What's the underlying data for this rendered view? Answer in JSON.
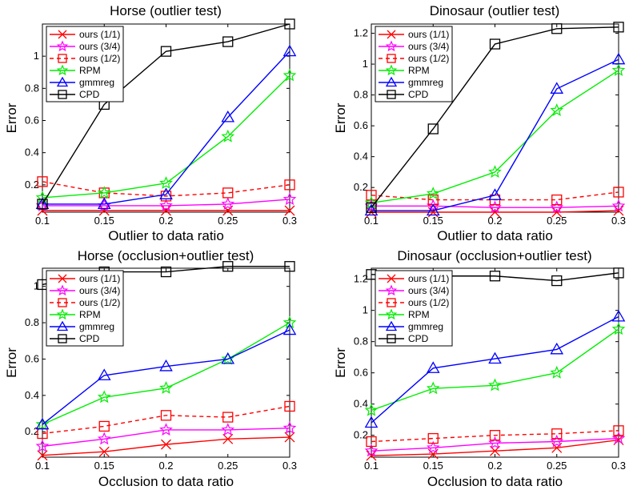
{
  "colors": {
    "ours_1_1": "#ff0000",
    "ours_3_4": "#ff00ff",
    "ours_1_2": "#ff0000",
    "rpm": "#00ee00",
    "gmmreg": "#0000ff",
    "cpd": "#000000"
  },
  "chart_data": [
    {
      "type": "line",
      "title": "Horse (outlier test)",
      "xlabel": "Outlier to data ratio",
      "ylabel": "Error",
      "x": [
        0.1,
        0.15,
        0.2,
        0.25,
        0.3
      ],
      "xticks": [
        "0.1",
        "0.15",
        "0.2",
        "0.25",
        "0.3"
      ],
      "yticks": [
        "0.2",
        "0.4",
        "0.6",
        "0.8",
        "1"
      ],
      "ytick_values": [
        0.2,
        0.4,
        0.6,
        0.8,
        1.0
      ],
      "xlim": [
        0.1,
        0.3
      ],
      "ylim": [
        0.03,
        1.2
      ],
      "legend": "top-left",
      "series": [
        {
          "name": "ours (1/1)",
          "values": [
            0.04,
            0.04,
            0.04,
            0.04,
            0.04
          ]
        },
        {
          "name": "ours (3/4)",
          "values": [
            0.07,
            0.07,
            0.07,
            0.08,
            0.11
          ]
        },
        {
          "name": "ours (1/2)",
          "values": [
            0.22,
            0.15,
            0.13,
            0.15,
            0.2
          ]
        },
        {
          "name": "RPM",
          "values": [
            0.12,
            0.15,
            0.21,
            0.5,
            0.88
          ]
        },
        {
          "name": "gmmreg",
          "values": [
            0.08,
            0.08,
            0.14,
            0.62,
            1.03
          ]
        },
        {
          "name": "CPD",
          "values": [
            0.08,
            0.7,
            1.03,
            1.09,
            1.2
          ]
        }
      ]
    },
    {
      "type": "line",
      "title": "Dinosaur (outlier test)",
      "xlabel": "Outlier to data ratio",
      "ylabel": "Error",
      "x": [
        0.1,
        0.15,
        0.2,
        0.25,
        0.3
      ],
      "xticks": [
        "0.1",
        "0.15",
        "0.2",
        "0.25",
        "0.3"
      ],
      "yticks": [
        "0.2",
        "0.4",
        "0.6",
        "0.8",
        "1",
        "1.2"
      ],
      "ytick_values": [
        0.2,
        0.4,
        0.6,
        0.8,
        1.0,
        1.2
      ],
      "xlim": [
        0.1,
        0.3
      ],
      "ylim": [
        0.04,
        1.26
      ],
      "legend": "top-left",
      "series": [
        {
          "name": "ours (1/1)",
          "values": [
            0.04,
            0.04,
            0.04,
            0.04,
            0.05
          ]
        },
        {
          "name": "ours (3/4)",
          "values": [
            0.08,
            0.08,
            0.07,
            0.07,
            0.08
          ]
        },
        {
          "name": "ours (1/2)",
          "values": [
            0.15,
            0.12,
            0.12,
            0.12,
            0.17
          ]
        },
        {
          "name": "RPM",
          "values": [
            0.1,
            0.16,
            0.3,
            0.7,
            0.96
          ]
        },
        {
          "name": "gmmreg",
          "values": [
            0.05,
            0.05,
            0.15,
            0.84,
            1.03
          ]
        },
        {
          "name": "CPD",
          "values": [
            0.07,
            0.58,
            1.13,
            1.23,
            1.24
          ]
        }
      ]
    },
    {
      "type": "line",
      "title": "Horse (occlusion+outlier test)",
      "xlabel": "Occlusion to data ratio",
      "ylabel": "Error",
      "x": [
        0.1,
        0.15,
        0.2,
        0.25,
        0.3
      ],
      "xticks": [
        "0.1",
        "0.15",
        "0.2",
        "0.25",
        "0.3"
      ],
      "yticks": [
        "0.2",
        "0.4",
        "0.6",
        "0.8",
        "1"
      ],
      "ytick_values": [
        0.2,
        0.4,
        0.6,
        0.8,
        1.0
      ],
      "xlim": [
        0.1,
        0.3
      ],
      "ylim": [
        0.06,
        1.1
      ],
      "legend": "top-left",
      "series": [
        {
          "name": "ours (1/1)",
          "values": [
            0.07,
            0.09,
            0.13,
            0.16,
            0.17
          ]
        },
        {
          "name": "ours (3/4)",
          "values": [
            0.12,
            0.16,
            0.21,
            0.21,
            0.22
          ]
        },
        {
          "name": "ours (1/2)",
          "values": [
            0.19,
            0.23,
            0.29,
            0.28,
            0.34
          ]
        },
        {
          "name": "RPM",
          "values": [
            0.24,
            0.39,
            0.44,
            0.6,
            0.8
          ]
        },
        {
          "name": "gmmreg",
          "values": [
            0.24,
            0.51,
            0.56,
            0.6,
            0.76
          ]
        },
        {
          "name": "CPD",
          "values": [
            1.01,
            1.08,
            1.08,
            1.11,
            1.11
          ]
        }
      ]
    },
    {
      "type": "line",
      "title": "Dinosaur (occlusion+outlier test)",
      "xlabel": "Occlusion to data ratio",
      "ylabel": "Error",
      "x": [
        0.1,
        0.15,
        0.2,
        0.25,
        0.3
      ],
      "xticks": [
        "0.1",
        "0.15",
        "0.2",
        "0.25",
        "0.3"
      ],
      "yticks": [
        "0.2",
        "0.4",
        "0.6",
        "0.8",
        "1",
        "1.2"
      ],
      "ytick_values": [
        0.2,
        0.4,
        0.6,
        0.8,
        1.0,
        1.2
      ],
      "xlim": [
        0.1,
        0.3
      ],
      "ylim": [
        0.06,
        1.27
      ],
      "legend": "top-left",
      "series": [
        {
          "name": "ours (1/1)",
          "values": [
            0.07,
            0.08,
            0.1,
            0.12,
            0.17
          ]
        },
        {
          "name": "ours (3/4)",
          "values": [
            0.1,
            0.12,
            0.15,
            0.16,
            0.18
          ]
        },
        {
          "name": "ours (1/2)",
          "values": [
            0.16,
            0.18,
            0.2,
            0.21,
            0.23
          ]
        },
        {
          "name": "RPM",
          "values": [
            0.36,
            0.5,
            0.52,
            0.6,
            0.88
          ]
        },
        {
          "name": "gmmreg",
          "values": [
            0.28,
            0.63,
            0.69,
            0.75,
            0.96
          ]
        },
        {
          "name": "CPD",
          "values": [
            1.23,
            1.22,
            1.22,
            1.19,
            1.24
          ]
        }
      ]
    }
  ]
}
